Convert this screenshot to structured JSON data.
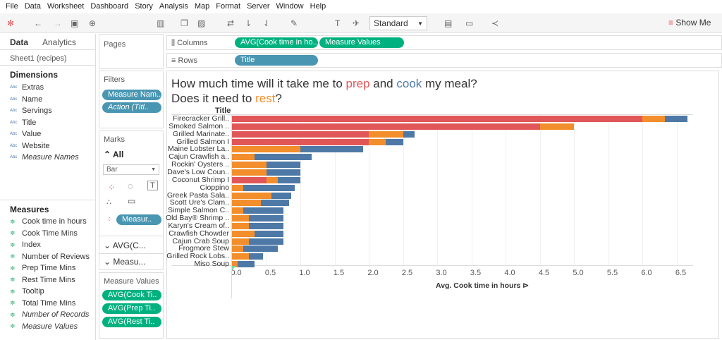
{
  "menu": [
    "File",
    "Data",
    "Worksheet",
    "Dashboard",
    "Story",
    "Analysis",
    "Map",
    "Format",
    "Server",
    "Window",
    "Help"
  ],
  "toolbar": {
    "mark_size": "Standard",
    "show_me": "Show Me"
  },
  "left": {
    "tabs": [
      "Data",
      "Analytics"
    ],
    "source": "Sheet1 (recipes)",
    "dimensions_label": "Dimensions",
    "dimensions": [
      "Extras",
      "Name",
      "Servings",
      "Title",
      "Value",
      "Website",
      "Measure Names"
    ],
    "measures_label": "Measures",
    "measures": [
      "Cook time in hours",
      "Cook Time Mins",
      "Index",
      "Number of Reviews",
      "Prep Time Mins",
      "Rest Time Mins",
      "Tooltip",
      "Total Time Mins",
      "Number of Records",
      "Measure Values"
    ]
  },
  "cards": {
    "pages": "Pages",
    "filters": "Filters",
    "filter_pills": [
      "Measure Nam..",
      "Action (Titl.."
    ],
    "marks": "Marks",
    "all": "All",
    "mark_type": "Bar",
    "color_pill": "Measur..",
    "layers": [
      "AVG(C...",
      "Measu..."
    ],
    "measure_values": "Measure Values",
    "mv_pills": [
      "AVG(Cook Ti..",
      "AVG(Prep Ti..",
      "AVG(Rest Ti.."
    ]
  },
  "shelves": {
    "columns": "Columns",
    "columns_pills": [
      "AVG(Cook time in ho..",
      "Measure Values"
    ],
    "rows": "Rows",
    "rows_pills": [
      "Title"
    ]
  },
  "colors": {
    "prep": "#e15759",
    "rest": "#f28e2b",
    "cook": "#4e79a7"
  },
  "chart_data": {
    "type": "bar",
    "orientation": "horizontal",
    "stacked": true,
    "title_parts": [
      "How much time will it take me to ",
      "prep",
      " and ",
      "cook",
      " my meal?",
      "Does it need to ",
      "rest",
      "?"
    ],
    "row_header": "Title",
    "xlabel": "Avg. Cook time in hours",
    "xlim": [
      0,
      6.8
    ],
    "xticks": [
      "0.0",
      "0.5",
      "1.0",
      "1.5",
      "2.0",
      "2.5",
      "3.0",
      "3.5",
      "4.0",
      "4.5",
      "5.0",
      "5.5",
      "6.0",
      "6.5"
    ],
    "categories": [
      "Firecracker Grill..",
      "Smoked Salmon ..",
      "Grilled Marinate..",
      "Grilled Salmon I",
      "Maine Lobster La..",
      "Cajun Crawfish a..",
      "Rockin' Oysters ..",
      "Dave's Low Coun..",
      "Coconut Shrimp I",
      "Cioppino",
      "Greek Pasta Sala..",
      "Scott Ure's Clam..",
      "Simple Salmon C..",
      "Old Bay® Shrimp ..",
      "Karyn's Cream of..",
      "Crawfish Chowder",
      "Cajun Crab Soup",
      "Frogmore Stew",
      "Grilled Rock Lobs..",
      "Miso Soup"
    ],
    "series": [
      {
        "name": "prep",
        "values": [
          6,
          4.5,
          2,
          2,
          0,
          0,
          0,
          0,
          0.5,
          0,
          0,
          0,
          0,
          0,
          0,
          0,
          0,
          0,
          0,
          0
        ]
      },
      {
        "name": "rest",
        "values": [
          0.33,
          0.5,
          0.5,
          0.25,
          1,
          0.33,
          0.5,
          0.5,
          0.17,
          0.17,
          0.58,
          0.42,
          0.17,
          0.25,
          0.25,
          0.33,
          0.25,
          0.17,
          0.25,
          0.08
        ]
      },
      {
        "name": "cook",
        "values": [
          0.33,
          0,
          0.17,
          0.25,
          0.92,
          0.84,
          0.5,
          0.5,
          0.33,
          0.75,
          0.29,
          0.41,
          0.58,
          0.5,
          0.5,
          0.42,
          0.5,
          0.5,
          0.2,
          0.25
        ]
      }
    ]
  }
}
